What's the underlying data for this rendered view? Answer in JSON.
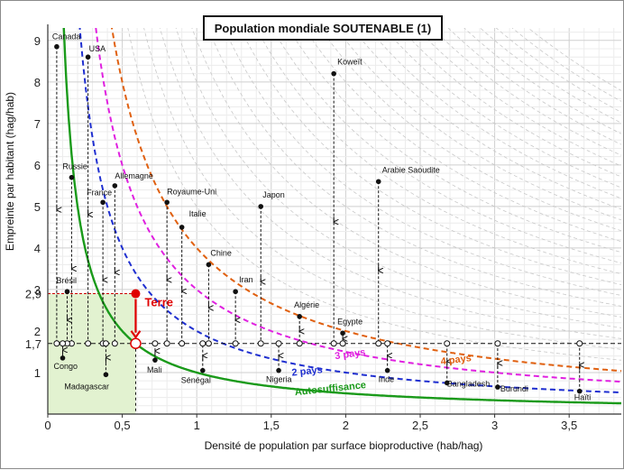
{
  "chart_data": {
    "type": "scatter",
    "title": "Population mondiale SOUTENABLE (1)",
    "xlabel": "Densité de population par surface bioproductive (hab/hag)",
    "ylabel": "Empreinte par habitant (hag/hab)",
    "xlim": [
      0,
      3.85
    ],
    "ylim": [
      0,
      9.3
    ],
    "x_ticks": [
      "0",
      "0,5",
      "1",
      "1,5",
      "2",
      "2,5",
      "3",
      "3,5"
    ],
    "x_tick_values": [
      0,
      0.5,
      1,
      1.5,
      2,
      2.5,
      3,
      3.5
    ],
    "y_ticks": [
      "1",
      "2",
      "3",
      "4",
      "5",
      "6",
      "7",
      "8",
      "9"
    ],
    "y_tick_values": [
      1,
      2,
      3,
      4,
      5,
      6,
      7,
      8,
      9
    ],
    "y_special_ticks": [
      {
        "label": "2,9",
        "value": 2.9,
        "color": "#cc0000"
      },
      {
        "label": "1,7",
        "value": 1.7,
        "color": "#cc0000"
      }
    ],
    "grid": true,
    "reference_line_y": 1.7,
    "curves": [
      {
        "label": "Autosuffisance",
        "k": 1,
        "color": "#1a9a1a",
        "style": "solid"
      },
      {
        "label": "2 pays",
        "k": 2,
        "color": "#1f2fd0",
        "style": "dashed"
      },
      {
        "label": "3 pays",
        "k": 3,
        "color": "#e020e0",
        "style": "dashed"
      },
      {
        "label": "4 pays",
        "k": 4,
        "color": "#e06010",
        "style": "dashed"
      }
    ],
    "earth": {
      "label": "Terre",
      "x": 0.59,
      "y": 2.9,
      "y_sustainable": 1.7,
      "color": "#e00000"
    },
    "countries": [
      {
        "name": "Canada",
        "x": 0.06,
        "y": 8.85
      },
      {
        "name": "USA",
        "x": 0.27,
        "y": 8.6
      },
      {
        "name": "Russie",
        "x": 0.16,
        "y": 5.7
      },
      {
        "name": "France",
        "x": 0.37,
        "y": 5.1
      },
      {
        "name": "Allemagne",
        "x": 0.45,
        "y": 5.5
      },
      {
        "name": "Royaume-Uni",
        "x": 0.8,
        "y": 5.1
      },
      {
        "name": "Italie",
        "x": 0.9,
        "y": 4.5
      },
      {
        "name": "Chine",
        "x": 1.08,
        "y": 3.6
      },
      {
        "name": "Japon",
        "x": 1.43,
        "y": 5.0
      },
      {
        "name": "Iran",
        "x": 1.26,
        "y": 2.95
      },
      {
        "name": "Koweït",
        "x": 1.92,
        "y": 8.2
      },
      {
        "name": "Arabie Saoudite",
        "x": 2.22,
        "y": 5.6
      },
      {
        "name": "Algérie",
        "x": 1.69,
        "y": 2.35
      },
      {
        "name": "Egypte",
        "x": 1.98,
        "y": 1.95
      },
      {
        "name": "Brésil",
        "x": 0.13,
        "y": 2.95
      },
      {
        "name": "Congo",
        "x": 0.1,
        "y": 1.35
      },
      {
        "name": "Madagascar",
        "x": 0.39,
        "y": 0.95
      },
      {
        "name": "Mali",
        "x": 0.72,
        "y": 1.3
      },
      {
        "name": "Sénégal",
        "x": 1.04,
        "y": 1.05
      },
      {
        "name": "Nigeria",
        "x": 1.55,
        "y": 1.05
      },
      {
        "name": "Inde",
        "x": 2.28,
        "y": 1.05
      },
      {
        "name": "Bangladesh",
        "x": 2.68,
        "y": 0.75
      },
      {
        "name": "Burundi",
        "x": 3.02,
        "y": 0.65
      },
      {
        "name": "Haïti",
        "x": 3.57,
        "y": 0.55
      }
    ]
  }
}
